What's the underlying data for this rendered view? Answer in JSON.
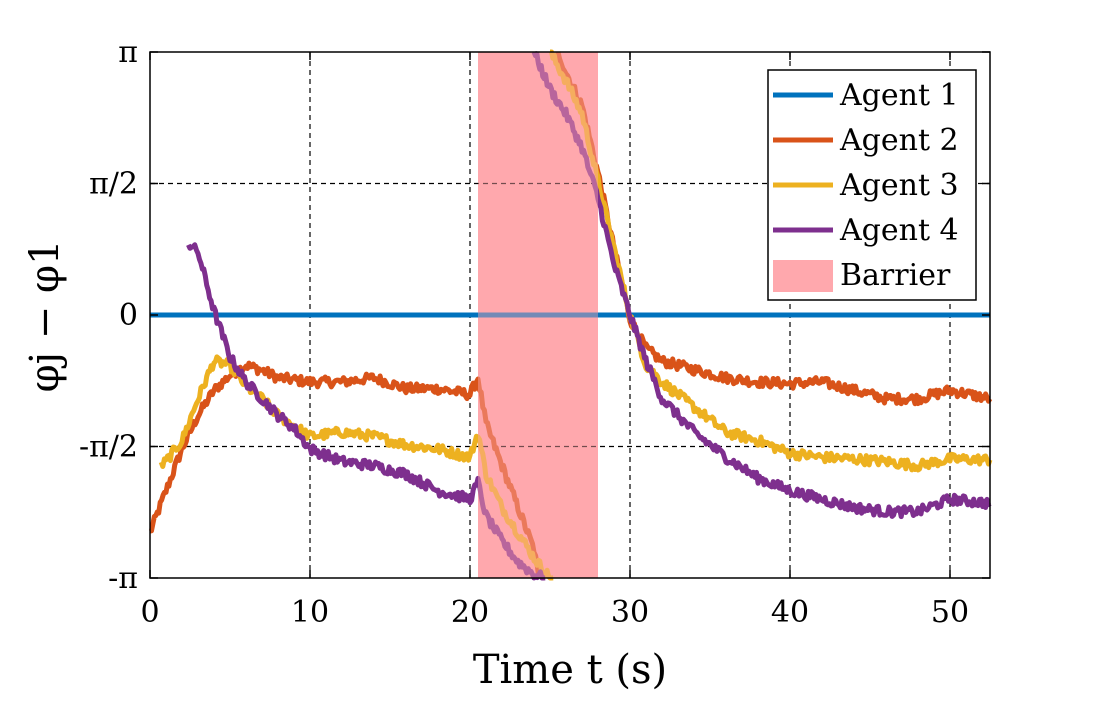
{
  "chart_data": {
    "type": "line",
    "xlabel": "Time t (s)",
    "ylabel": "φj − φ1",
    "xlim": [
      0,
      52.5
    ],
    "ylim": [
      -3.14159,
      3.14159
    ],
    "x_ticks": [
      0,
      10,
      20,
      30,
      40,
      50
    ],
    "x_tick_labels": [
      "0",
      "10",
      "20",
      "30",
      "40",
      "50"
    ],
    "y_ticks": [
      -3.14159,
      -1.5708,
      0,
      1.5708,
      3.14159
    ],
    "y_tick_labels": [
      "-π",
      "-π/2",
      "0",
      "π/2",
      "π"
    ],
    "grid": true,
    "legend_position": "top-right",
    "barrier": {
      "label": "Barrier",
      "x_range": [
        20.5,
        28
      ],
      "color": "#ffa8ad"
    },
    "series": [
      {
        "name": "Agent 1",
        "color": "#0072bd",
        "x": [
          0,
          52.5
        ],
        "y": [
          0,
          0
        ]
      },
      {
        "name": "Agent 2",
        "color": "#d95319",
        "x": [
          0,
          1,
          2,
          3,
          4,
          5,
          6,
          7,
          8,
          10,
          12,
          14,
          16,
          18,
          20,
          20.5,
          21,
          22,
          23,
          24,
          24.3,
          25.5,
          26,
          27,
          28,
          29,
          30,
          31,
          32,
          34,
          36,
          38,
          40,
          42,
          44,
          46,
          48,
          50,
          52.5
        ],
        "y": [
          -2.6,
          -2.1,
          -1.6,
          -1.2,
          -0.9,
          -0.72,
          -0.6,
          -0.66,
          -0.75,
          -0.8,
          -0.8,
          -0.75,
          -0.88,
          -0.88,
          -0.95,
          -0.75,
          -1.3,
          -1.8,
          -2.3,
          -2.8,
          -3.14,
          3.14,
          2.9,
          2.5,
          1.7,
          0.8,
          -0.05,
          -0.4,
          -0.55,
          -0.65,
          -0.75,
          -0.8,
          -0.82,
          -0.8,
          -0.9,
          -1.0,
          -1.0,
          -0.9,
          -1.0
        ]
      },
      {
        "name": "Agent 3",
        "color": "#edb120",
        "x": [
          0.7,
          1,
          2,
          3,
          4,
          5,
          6,
          7,
          8,
          10,
          12,
          14,
          16,
          18,
          20,
          20.5,
          21,
          22,
          23,
          24,
          25,
          25.2,
          25,
          26,
          27,
          28,
          29,
          30,
          31,
          32,
          34,
          36,
          38,
          40,
          42,
          44,
          46,
          48,
          50,
          52.5
        ],
        "y": [
          -1.8,
          -1.75,
          -1.5,
          -1.0,
          -0.55,
          -0.6,
          -0.85,
          -1.0,
          -1.2,
          -1.45,
          -1.4,
          -1.45,
          -1.55,
          -1.6,
          -1.7,
          -1.4,
          -1.9,
          -2.3,
          -2.6,
          -2.9,
          -3.14,
          -3.14,
          3.14,
          2.8,
          2.4,
          1.6,
          0.8,
          0,
          -0.6,
          -0.8,
          -1.1,
          -1.4,
          -1.5,
          -1.65,
          -1.7,
          -1.72,
          -1.75,
          -1.8,
          -1.72,
          -1.73
        ]
      },
      {
        "name": "Agent 4",
        "color": "#7e2f8e",
        "x": [
          2.4,
          3,
          4,
          5,
          6,
          7,
          8,
          9,
          10,
          12,
          14,
          16,
          18,
          20,
          20.5,
          21,
          22,
          23,
          24,
          24.7,
          24,
          25,
          26,
          27,
          28,
          29,
          30,
          31,
          32,
          34,
          36,
          38,
          40,
          42,
          44,
          46,
          48,
          50,
          52.5
        ],
        "y": [
          0.85,
          0.75,
          0.05,
          -0.5,
          -0.8,
          -1.0,
          -1.2,
          -1.35,
          -1.6,
          -1.75,
          -1.8,
          -1.9,
          -2.1,
          -2.2,
          -2.0,
          -2.4,
          -2.7,
          -2.95,
          -3.1,
          -3.14,
          3.14,
          2.7,
          2.4,
          2.0,
          1.4,
          0.6,
          0,
          -0.55,
          -1.0,
          -1.4,
          -1.7,
          -1.95,
          -2.1,
          -2.2,
          -2.3,
          -2.35,
          -2.35,
          -2.2,
          -2.25
        ]
      }
    ]
  }
}
